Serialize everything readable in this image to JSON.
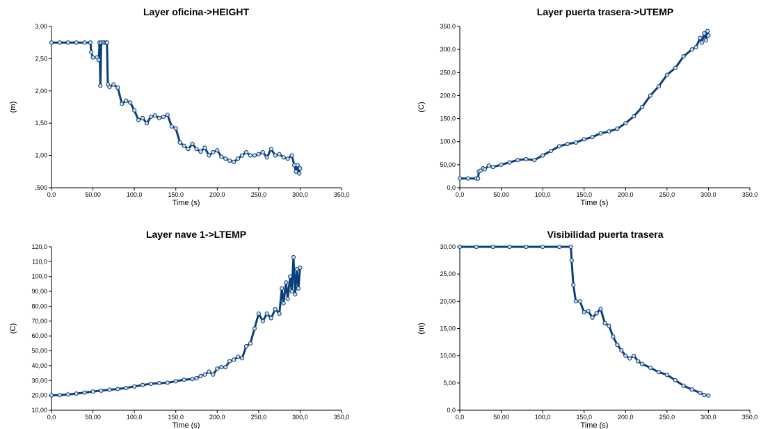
{
  "colors": {
    "series": "#0b3f7a",
    "marker_fill": "#c9dcf0",
    "axis": "#000000"
  },
  "chart_data": [
    {
      "type": "line",
      "title": "Layer oficina->HEIGHT",
      "xlabel": "Time (s)",
      "ylabel": "(m)",
      "xlim": [
        0,
        350
      ],
      "ylim": [
        0.5,
        3.0
      ],
      "xticks": [
        0,
        50,
        100,
        150,
        200,
        250,
        300,
        350
      ],
      "xtick_labels": [
        "0,0",
        "50,00",
        "100,0",
        "150,0",
        "200,0",
        "250,0",
        "300,0",
        "350,0"
      ],
      "yticks": [
        0.5,
        1.0,
        1.5,
        2.0,
        2.5,
        3.0
      ],
      "ytick_labels": [
        ",500",
        "1,00",
        "1,50",
        "2,00",
        "2,50",
        "3,00"
      ],
      "grid": false,
      "series": [
        {
          "x": [
            0,
            10,
            20,
            30,
            40,
            47,
            48,
            50,
            55,
            57,
            58,
            59,
            60,
            62,
            64,
            66,
            67,
            68,
            70,
            75,
            80,
            85,
            90,
            95,
            100,
            105,
            110,
            115,
            120,
            125,
            130,
            135,
            140,
            145,
            150,
            155,
            160,
            165,
            170,
            175,
            180,
            185,
            190,
            195,
            200,
            205,
            210,
            215,
            220,
            225,
            230,
            235,
            240,
            245,
            250,
            255,
            260,
            265,
            270,
            275,
            280,
            285,
            290,
            293,
            295,
            297,
            299,
            300
          ],
          "y": [
            2.75,
            2.75,
            2.75,
            2.75,
            2.75,
            2.75,
            2.6,
            2.52,
            2.52,
            2.48,
            2.75,
            2.08,
            2.75,
            2.75,
            2.75,
            2.75,
            2.75,
            2.1,
            2.06,
            2.1,
            2.05,
            1.8,
            1.85,
            1.82,
            1.7,
            1.55,
            1.58,
            1.5,
            1.6,
            1.62,
            1.58,
            1.6,
            1.63,
            1.45,
            1.42,
            1.2,
            1.15,
            1.1,
            1.18,
            1.1,
            1.06,
            1.12,
            1.0,
            1.05,
            1.08,
            0.98,
            0.95,
            0.92,
            0.9,
            0.95,
            1.0,
            1.05,
            1.0,
            1.0,
            1.02,
            1.05,
            0.97,
            1.1,
            1.0,
            1.02,
            0.97,
            0.95,
            1.0,
            0.85,
            0.75,
            0.85,
            0.72,
            0.8
          ]
        }
      ]
    },
    {
      "type": "line",
      "title": "Layer puerta trasera->UTEMP",
      "xlabel": "Time (s)",
      "ylabel": "(C)",
      "xlim": [
        0,
        350
      ],
      "ylim": [
        0,
        350
      ],
      "xticks": [
        0,
        50,
        100,
        150,
        200,
        250,
        300,
        350
      ],
      "xtick_labels": [
        "0,0",
        "50,00",
        "100,0",
        "150,0",
        "200,0",
        "250,0",
        "300,0",
        "350,0"
      ],
      "yticks": [
        0,
        50,
        100,
        150,
        200,
        250,
        300,
        350
      ],
      "ytick_labels": [
        "0,0",
        "50,00",
        "100,0",
        "150,0",
        "200,0",
        "250,0",
        "300,0",
        "350,0"
      ],
      "grid": false,
      "series": [
        {
          "x": [
            0,
            10,
            20,
            22,
            23,
            25,
            28,
            30,
            35,
            40,
            50,
            60,
            70,
            80,
            90,
            100,
            110,
            120,
            130,
            140,
            150,
            160,
            170,
            180,
            190,
            200,
            210,
            220,
            230,
            240,
            250,
            260,
            270,
            280,
            285,
            290,
            292,
            295,
            297,
            299,
            300
          ],
          "y": [
            20,
            20,
            20,
            20,
            35,
            37,
            42,
            40,
            48,
            45,
            50,
            55,
            60,
            62,
            60,
            70,
            80,
            90,
            95,
            98,
            105,
            110,
            118,
            122,
            128,
            140,
            155,
            175,
            200,
            220,
            245,
            260,
            285,
            300,
            305,
            325,
            315,
            335,
            320,
            340,
            330
          ]
        }
      ]
    },
    {
      "type": "line",
      "title": "Layer nave 1->LTEMP",
      "xlabel": "Time (s)",
      "ylabel": "(C)",
      "xlim": [
        0,
        350
      ],
      "ylim": [
        10,
        120
      ],
      "xticks": [
        0,
        50,
        100,
        150,
        200,
        250,
        300,
        350
      ],
      "xtick_labels": [
        "0,0",
        "50,00",
        "100,0",
        "150,0",
        "200,0",
        "250,0",
        "300,0",
        "350,0"
      ],
      "yticks": [
        10,
        20,
        30,
        40,
        50,
        60,
        70,
        80,
        90,
        100,
        110,
        120
      ],
      "ytick_labels": [
        "10,00",
        "20,00",
        "30,00",
        "40,00",
        "50,00",
        "60,00",
        "70,00",
        "80,00",
        "90,00",
        "100,0",
        "110,0",
        "120,0"
      ],
      "grid": false,
      "series": [
        {
          "x": [
            0,
            10,
            20,
            30,
            40,
            50,
            60,
            70,
            80,
            90,
            100,
            110,
            120,
            130,
            140,
            150,
            160,
            170,
            175,
            180,
            185,
            190,
            195,
            200,
            205,
            210,
            215,
            220,
            225,
            230,
            235,
            240,
            245,
            250,
            255,
            260,
            265,
            270,
            275,
            278,
            280,
            283,
            285,
            288,
            290,
            292,
            294,
            296,
            298,
            300
          ],
          "y": [
            20,
            20.2,
            20.6,
            21.2,
            21.9,
            22.6,
            23.2,
            23.8,
            24.3,
            25,
            26,
            27,
            27.8,
            28.2,
            28.5,
            29.5,
            30.5,
            31,
            31.5,
            33,
            34,
            36,
            34,
            38,
            39,
            39,
            43,
            44,
            46,
            45,
            53,
            55,
            65,
            75,
            70,
            75,
            72,
            78,
            75,
            92,
            82,
            96,
            85,
            100,
            90,
            113,
            88,
            105,
            92,
            106
          ]
        }
      ]
    },
    {
      "type": "line",
      "title": "Visibilidad puerta trasera",
      "xlabel": "Time (s)",
      "ylabel": "(m)",
      "xlim": [
        0,
        350
      ],
      "ylim": [
        0,
        30
      ],
      "xticks": [
        0,
        50,
        100,
        150,
        200,
        250,
        300,
        350
      ],
      "xtick_labels": [
        "0,0",
        "50,00",
        "100,0",
        "150,0",
        "200,0",
        "250,0",
        "300,0",
        "350,0"
      ],
      "yticks": [
        0,
        5,
        10,
        15,
        20,
        25,
        30
      ],
      "ytick_labels": [
        "0,0",
        "5,00",
        "10,00",
        "15,00",
        "20,00",
        "25,00",
        "30,00"
      ],
      "grid": false,
      "series": [
        {
          "x": [
            0,
            20,
            40,
            60,
            80,
            100,
            120,
            134,
            135,
            137,
            140,
            145,
            150,
            155,
            160,
            165,
            170,
            175,
            180,
            185,
            190,
            195,
            200,
            205,
            210,
            215,
            220,
            230,
            240,
            250,
            260,
            270,
            280,
            290,
            295,
            300
          ],
          "y": [
            30,
            30,
            30,
            30,
            30,
            30,
            30,
            30,
            27.5,
            23,
            20,
            20,
            18,
            18.2,
            17,
            17.8,
            18.6,
            16,
            15.5,
            13.5,
            12,
            11,
            10,
            9.5,
            10,
            9,
            8.5,
            7.8,
            7,
            6.5,
            5.5,
            4.5,
            3.8,
            3.2,
            2.8,
            2.7
          ]
        }
      ]
    }
  ]
}
